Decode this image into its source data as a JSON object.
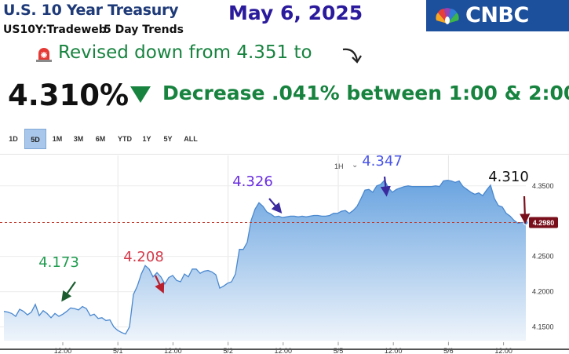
{
  "header": {
    "title": "U.S. 10 Year Treasury",
    "ticker": "US10Y:Tradeweb",
    "trend_label": "5 Day Trends",
    "date": "May 6, 2025",
    "brand": "CNBC",
    "brand_color": "#1c4f9c"
  },
  "headline": {
    "revised_text": "Revised down from 4.351 to",
    "siren_icon": "siren-icon",
    "curve_icon": "curved-arrow-down-icon",
    "price": "4.310%",
    "decrease_label": "Decrease",
    "change_text": ".041% between 1:00 & 2:00",
    "accent_color": "#17833f"
  },
  "range_buttons": [
    "1D",
    "5D",
    "1M",
    "3M",
    "6M",
    "YTD",
    "1Y",
    "5Y",
    "ALL"
  ],
  "active_range": "5D",
  "interval": {
    "label": "1H",
    "icon": "chevron-down-icon"
  },
  "chart_data": {
    "type": "area",
    "x_tick_labels": [
      "12:00",
      "5/1",
      "12:00",
      "5/2",
      "12:00",
      "5/5",
      "12:00",
      "5/6",
      "12:00"
    ],
    "y_tick_labels": [
      "4.1500",
      "4.2000",
      "4.2500",
      "4.3500"
    ],
    "ylim": [
      4.135,
      4.382
    ],
    "reference_line": {
      "value": 4.298,
      "label": "4.2980",
      "style": "dashed",
      "color": "#c0392b"
    },
    "series": [
      {
        "x": [
          0,
          1,
          2,
          3,
          4,
          5,
          6,
          7,
          8,
          9,
          10,
          11,
          12,
          13,
          14,
          15,
          16,
          17,
          18,
          19,
          20,
          21,
          22,
          23,
          24,
          25,
          26,
          27,
          28,
          29,
          30,
          31,
          32,
          33,
          34,
          35,
          36,
          37,
          38,
          39,
          40,
          41,
          42,
          43,
          44,
          45,
          46,
          47,
          48,
          49,
          50,
          51,
          52,
          53,
          54,
          55,
          56,
          57,
          58,
          59,
          60,
          61,
          62,
          63,
          64,
          65,
          66,
          67,
          68,
          69,
          70,
          71,
          72,
          73,
          74,
          75,
          76,
          77,
          78,
          79,
          80,
          81,
          82,
          83,
          84,
          85,
          86,
          87,
          88,
          89,
          90,
          91,
          92,
          93,
          94,
          95,
          96,
          97,
          98,
          99,
          100,
          101,
          102,
          103,
          104,
          105,
          106,
          107,
          108,
          109,
          110,
          111,
          112,
          113,
          114,
          115,
          116,
          117,
          118,
          119,
          120,
          121,
          122,
          123,
          124,
          125,
          126,
          127,
          128,
          129,
          130,
          131,
          132,
          133
        ],
        "values": [
          4.172,
          4.171,
          4.169,
          4.165,
          4.175,
          4.172,
          4.167,
          4.171,
          4.182,
          4.166,
          4.173,
          4.169,
          4.163,
          4.169,
          4.165,
          4.168,
          4.172,
          4.177,
          4.176,
          4.174,
          4.179,
          4.176,
          4.166,
          4.168,
          4.162,
          4.163,
          4.159,
          4.16,
          4.15,
          4.145,
          4.142,
          4.14,
          4.15,
          4.196,
          4.208,
          4.225,
          4.237,
          4.232,
          4.221,
          4.227,
          4.221,
          4.211,
          4.22,
          4.223,
          4.216,
          4.214,
          4.225,
          4.221,
          4.232,
          4.232,
          4.226,
          4.229,
          4.23,
          4.228,
          4.224,
          4.205,
          4.208,
          4.212,
          4.214,
          4.225,
          4.26,
          4.26,
          4.27,
          4.301,
          4.317,
          4.326,
          4.321,
          4.313,
          4.31,
          4.306,
          4.307,
          4.305,
          4.306,
          4.307,
          4.307,
          4.306,
          4.307,
          4.306,
          4.307,
          4.308,
          4.308,
          4.307,
          4.307,
          4.308,
          4.311,
          4.311,
          4.314,
          4.315,
          4.311,
          4.315,
          4.321,
          4.332,
          4.344,
          4.345,
          4.341,
          4.35,
          4.352,
          4.358,
          4.347,
          4.341,
          4.345,
          4.347,
          4.349,
          4.35,
          4.349,
          4.349,
          4.349,
          4.349,
          4.349,
          4.349,
          4.35,
          4.349,
          4.357,
          4.358,
          4.357,
          4.355,
          4.357,
          4.349,
          4.345,
          4.341,
          4.338,
          4.34,
          4.336,
          4.344,
          4.351,
          4.332,
          4.322,
          4.32,
          4.311,
          4.307,
          4.301,
          4.297,
          4.298,
          4.298
        ]
      }
    ],
    "annotations": [
      {
        "text": "4.173",
        "color": "#1e9c4e"
      },
      {
        "text": "4.208",
        "color": "#d43a4a"
      },
      {
        "text": "4.326",
        "color": "#6a2ee0"
      },
      {
        "text": "4.347",
        "color": "#4a56e6"
      },
      {
        "text": "4.310",
        "color": "#111111"
      }
    ],
    "line_color": "#4a88cf",
    "fill_top_color": "#6aa4e0",
    "fill_bottom_color": "#eef4fb",
    "grid": true
  }
}
